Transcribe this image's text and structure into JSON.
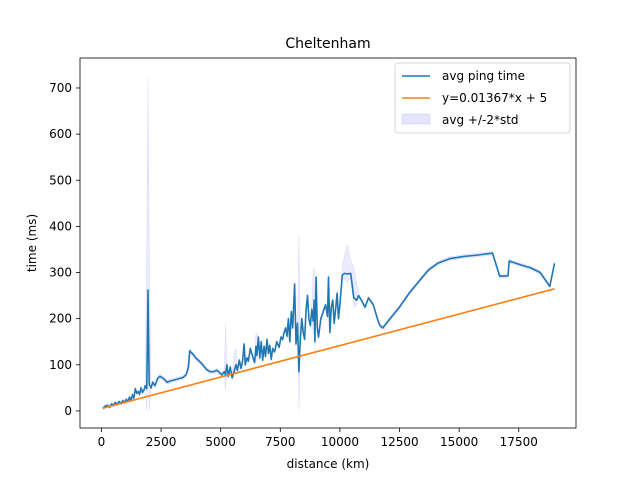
{
  "chart_data": {
    "type": "line",
    "title": "Cheltenham",
    "xlabel": "distance (km)",
    "ylabel": "time (ms)",
    "xlim": [
      -900,
      19900
    ],
    "ylim": [
      -37,
      765
    ],
    "x_ticks": [
      0,
      2500,
      5000,
      7500,
      10000,
      12500,
      15000,
      17500
    ],
    "y_ticks": [
      0,
      100,
      200,
      300,
      400,
      500,
      600,
      700
    ],
    "x_tick_labels": [
      "0",
      "2500",
      "5000",
      "7500",
      "10000",
      "12500",
      "15000",
      "17500"
    ],
    "y_tick_labels": [
      "0",
      "100",
      "200",
      "300",
      "400",
      "500",
      "600",
      "700"
    ],
    "grid": false,
    "legend_position": "top-right",
    "legend": [
      {
        "label": "avg ping time",
        "kind": "line",
        "color": "#1f77b4"
      },
      {
        "label": "y=0.01367*x + 5",
        "kind": "line",
        "color": "#ff7f0e"
      },
      {
        "label": "avg +/-2*std",
        "kind": "patch",
        "color": "#0000ff"
      }
    ],
    "series": [
      {
        "name": "avg ping time",
        "color": "#1f77b4",
        "points": [
          [
            60,
            5
          ],
          [
            150,
            10
          ],
          [
            250,
            12
          ],
          [
            350,
            8
          ],
          [
            420,
            15
          ],
          [
            500,
            12
          ],
          [
            580,
            18
          ],
          [
            660,
            14
          ],
          [
            740,
            20
          ],
          [
            820,
            16
          ],
          [
            900,
            22
          ],
          [
            960,
            18
          ],
          [
            1040,
            25
          ],
          [
            1100,
            20
          ],
          [
            1180,
            30
          ],
          [
            1240,
            22
          ],
          [
            1300,
            35
          ],
          [
            1360,
            28
          ],
          [
            1420,
            48
          ],
          [
            1480,
            38
          ],
          [
            1540,
            42
          ],
          [
            1600,
            36
          ],
          [
            1660,
            50
          ],
          [
            1720,
            40
          ],
          [
            1780,
            45
          ],
          [
            1840,
            55
          ],
          [
            1900,
            48
          ],
          [
            1950,
            262
          ],
          [
            2000,
            58
          ],
          [
            2080,
            50
          ],
          [
            2150,
            62
          ],
          [
            2250,
            55
          ],
          [
            2350,
            70
          ],
          [
            2450,
            75
          ],
          [
            2550,
            72
          ],
          [
            2650,
            68
          ],
          [
            2750,
            62
          ],
          [
            2900,
            65
          ],
          [
            3050,
            67
          ],
          [
            3250,
            70
          ],
          [
            3400,
            72
          ],
          [
            3550,
            78
          ],
          [
            3650,
            95
          ],
          [
            3700,
            130
          ],
          [
            3800,
            125
          ],
          [
            3950,
            115
          ],
          [
            4100,
            108
          ],
          [
            4250,
            100
          ],
          [
            4400,
            90
          ],
          [
            4550,
            85
          ],
          [
            4700,
            85
          ],
          [
            4850,
            88
          ],
          [
            4950,
            83
          ],
          [
            5050,
            78
          ],
          [
            5150,
            85
          ],
          [
            5200,
            78
          ],
          [
            5260,
            100
          ],
          [
            5320,
            75
          ],
          [
            5400,
            95
          ],
          [
            5480,
            72
          ],
          [
            5560,
            85
          ],
          [
            5640,
            100
          ],
          [
            5700,
            88
          ],
          [
            5780,
            110
          ],
          [
            5850,
            92
          ],
          [
            5920,
            108
          ],
          [
            5980,
            145
          ],
          [
            6030,
            100
          ],
          [
            6100,
            115
          ],
          [
            6160,
            108
          ],
          [
            6240,
            135
          ],
          [
            6300,
            125
          ],
          [
            6360,
            115
          ],
          [
            6420,
            105
          ],
          [
            6480,
            140
          ],
          [
            6520,
            120
          ],
          [
            6580,
            160
          ],
          [
            6640,
            115
          ],
          [
            6700,
            150
          ],
          [
            6760,
            110
          ],
          [
            6820,
            140
          ],
          [
            6880,
            118
          ],
          [
            6940,
            155
          ],
          [
            7000,
            125
          ],
          [
            7060,
            142
          ],
          [
            7120,
            112
          ],
          [
            7180,
            135
          ],
          [
            7260,
            128
          ],
          [
            7350,
            150
          ],
          [
            7450,
            138
          ],
          [
            7530,
            160
          ],
          [
            7600,
            155
          ],
          [
            7660,
            170
          ],
          [
            7720,
            180
          ],
          [
            7780,
            162
          ],
          [
            7840,
            200
          ],
          [
            7900,
            150
          ],
          [
            7960,
            215
          ],
          [
            8020,
            180
          ],
          [
            8100,
            275
          ],
          [
            8160,
            145
          ],
          [
            8220,
            190
          ],
          [
            8280,
            85
          ],
          [
            8340,
            155
          ],
          [
            8400,
            200
          ],
          [
            8460,
            170
          ],
          [
            8520,
            155
          ],
          [
            8580,
            220
          ],
          [
            8640,
            250
          ],
          [
            8700,
            200
          ],
          [
            8760,
            185
          ],
          [
            8820,
            220
          ],
          [
            8880,
            195
          ],
          [
            8920,
            240
          ],
          [
            8950,
            150
          ],
          [
            9000,
            290
          ],
          [
            9050,
            180
          ],
          [
            9100,
            160
          ],
          [
            9200,
            200
          ],
          [
            9300,
            215
          ],
          [
            9400,
            230
          ],
          [
            9480,
            205
          ],
          [
            9520,
            290
          ],
          [
            9580,
            170
          ],
          [
            9640,
            225
          ],
          [
            9700,
            240
          ],
          [
            9760,
            190
          ],
          [
            9820,
            220
          ],
          [
            9880,
            255
          ],
          [
            9940,
            200
          ],
          [
            10000,
            230
          ],
          [
            10100,
            295
          ],
          [
            10200,
            298
          ],
          [
            10300,
            297
          ],
          [
            10450,
            298
          ],
          [
            10580,
            245
          ],
          [
            10700,
            240
          ],
          [
            10780,
            250
          ],
          [
            10900,
            240
          ],
          [
            11050,
            225
          ],
          [
            11200,
            245
          ],
          [
            11400,
            230
          ],
          [
            11600,
            195
          ],
          [
            11680,
            185
          ],
          [
            11800,
            180
          ],
          [
            12100,
            200
          ],
          [
            12500,
            225
          ],
          [
            12900,
            255
          ],
          [
            13300,
            280
          ],
          [
            13700,
            305
          ],
          [
            14100,
            320
          ],
          [
            14600,
            330
          ],
          [
            15200,
            335
          ],
          [
            15800,
            338
          ],
          [
            16400,
            342
          ],
          [
            16700,
            292
          ],
          [
            17050,
            293
          ],
          [
            17100,
            325
          ],
          [
            17500,
            318
          ],
          [
            18000,
            310
          ],
          [
            18400,
            300
          ],
          [
            18800,
            270
          ],
          [
            19000,
            320
          ]
        ]
      },
      {
        "name": "y=0.01367*x + 5",
        "color": "#ff7f0e",
        "points": [
          [
            60,
            5.82
          ],
          [
            19000,
            264.73
          ]
        ]
      }
    ],
    "band": {
      "name": "avg +/-2*std",
      "color": "#0000ff",
      "opacity": 0.08,
      "spikes": [
        [
          1950,
          725,
          90
        ],
        [
          3700,
          135,
          100
        ],
        [
          5200,
          190,
          20
        ],
        [
          5600,
          205,
          60
        ],
        [
          6500,
          190,
          50
        ],
        [
          8280,
          380,
          40
        ],
        [
          8900,
          330,
          90
        ],
        [
          10300,
          360,
          280
        ],
        [
          10600,
          320,
          200
        ]
      ]
    }
  }
}
